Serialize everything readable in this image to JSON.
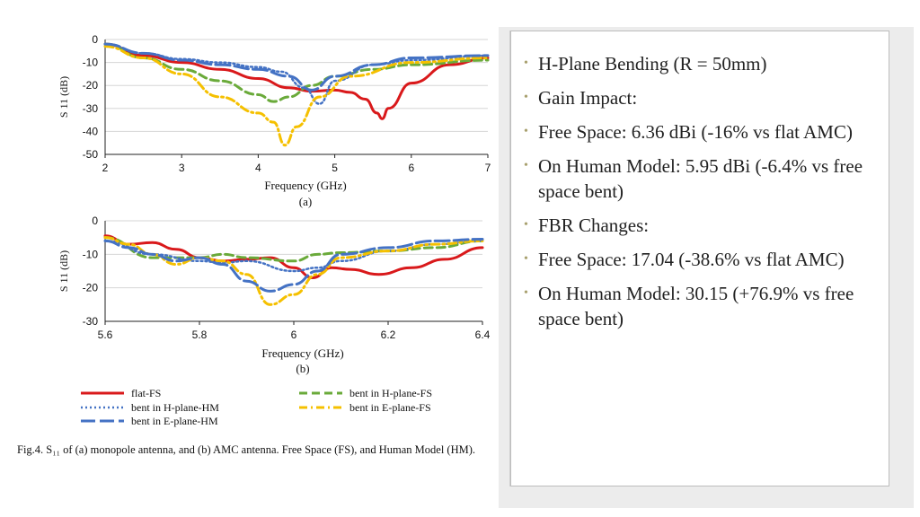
{
  "chart_data": [
    {
      "type": "line",
      "panel_label": "(a)",
      "xlabel": "Frequency (GHz)",
      "ylabel": "S 11 (dB)",
      "xlim": [
        2,
        7
      ],
      "ylim": [
        -50,
        0
      ],
      "xticks": [
        "2",
        "3",
        "4",
        "5",
        "6",
        "7"
      ],
      "yticks": [
        "0",
        "-10",
        "-20",
        "-30",
        "-40",
        "-50"
      ],
      "grid": "horizontal",
      "series": [
        {
          "name": "flat-FS",
          "color": "#d9191b",
          "dash": "solid",
          "x": [
            2,
            2.5,
            3,
            3.5,
            4,
            4.4,
            4.7,
            5,
            5.2,
            5.4,
            5.55,
            5.62,
            5.7,
            6,
            6.5,
            7
          ],
          "y": [
            -2,
            -7,
            -10,
            -13,
            -17,
            -21,
            -22.5,
            -22,
            -23,
            -26,
            -32,
            -34.5,
            -30,
            -19,
            -11,
            -8
          ]
        },
        {
          "name": "bent in H-plane-FS",
          "color": "#6aaa3a",
          "dash": "dash",
          "x": [
            2,
            2.5,
            3,
            3.5,
            4,
            4.2,
            4.4,
            4.7,
            5,
            5.5,
            6,
            7
          ],
          "y": [
            -2,
            -8,
            -13,
            -18,
            -24,
            -27,
            -25,
            -20,
            -16,
            -13,
            -11,
            -9
          ]
        },
        {
          "name": "bent in H-plane-HM",
          "color": "#4472c4",
          "dash": "dot",
          "x": [
            2,
            2.5,
            3,
            3.5,
            4,
            4.3,
            4.6,
            4.8,
            5,
            5.5,
            6,
            7
          ],
          "y": [
            -2,
            -6,
            -8.5,
            -10,
            -12,
            -14,
            -21,
            -28,
            -18,
            -11,
            -9,
            -7
          ]
        },
        {
          "name": "bent in E-plane-FS",
          "color": "#f5c000",
          "dash": "dashdot",
          "x": [
            2,
            2.5,
            3,
            3.5,
            4,
            4.2,
            4.35,
            4.5,
            4.8,
            5.2,
            6,
            7
          ],
          "y": [
            -3,
            -8,
            -15,
            -25,
            -32,
            -36,
            -46,
            -38,
            -25,
            -16,
            -10,
            -8
          ]
        },
        {
          "name": "bent in E-plane-HM",
          "color": "#4472c4",
          "dash": "longdash",
          "x": [
            2,
            2.5,
            3,
            3.5,
            4,
            4.4,
            4.7,
            5,
            5.5,
            6,
            7
          ],
          "y": [
            -2,
            -6,
            -9,
            -11,
            -13,
            -16,
            -22,
            -16,
            -11,
            -8,
            -7
          ]
        }
      ]
    },
    {
      "type": "line",
      "panel_label": "(b)",
      "xlabel": "Frequency (GHz)",
      "ylabel": "S 11 (dB)",
      "xlim": [
        5.6,
        6.4
      ],
      "ylim": [
        -30,
        0
      ],
      "xticks": [
        "5.6",
        "5.8",
        "6",
        "6.2",
        "6.4"
      ],
      "yticks": [
        "0",
        "-10",
        "-20",
        "-30"
      ],
      "grid": "horizontal",
      "series": [
        {
          "name": "flat-FS",
          "color": "#d9191b",
          "dash": "solid",
          "x": [
            5.6,
            5.65,
            5.7,
            5.75,
            5.8,
            5.85,
            5.9,
            5.95,
            6,
            6.04,
            6.08,
            6.12,
            6.18,
            6.25,
            6.32,
            6.4
          ],
          "y": [
            -4.5,
            -7,
            -6.5,
            -8.5,
            -11,
            -12,
            -11.5,
            -11,
            -14,
            -17,
            -14,
            -14.5,
            -16,
            -14,
            -11.5,
            -8
          ]
        },
        {
          "name": "bent in H-plane-FS",
          "color": "#6aaa3a",
          "dash": "dash",
          "x": [
            5.6,
            5.7,
            5.8,
            5.85,
            5.9,
            6.0,
            6.05,
            6.1,
            6.2,
            6.3,
            6.4
          ],
          "y": [
            -5,
            -11,
            -11,
            -10,
            -11,
            -12,
            -10,
            -9.5,
            -9,
            -8,
            -6
          ]
        },
        {
          "name": "bent in H-plane-HM",
          "color": "#4472c4",
          "dash": "dot",
          "x": [
            5.6,
            5.7,
            5.8,
            5.85,
            5.9,
            6.0,
            6.05,
            6.1,
            6.2,
            6.3,
            6.4
          ],
          "y": [
            -6,
            -10,
            -12,
            -12.5,
            -12,
            -15,
            -14,
            -12,
            -9,
            -7,
            -6
          ]
        },
        {
          "name": "bent in E-plane-FS",
          "color": "#f5c000",
          "dash": "dashdot",
          "x": [
            5.6,
            5.65,
            5.7,
            5.75,
            5.8,
            5.85,
            5.9,
            5.95,
            6.0,
            6.05,
            6.1,
            6.2,
            6.3,
            6.4
          ],
          "y": [
            -5,
            -7,
            -10,
            -13,
            -11,
            -12,
            -16,
            -25,
            -22,
            -16,
            -11,
            -9,
            -7,
            -6
          ]
        },
        {
          "name": "bent in E-plane-HM",
          "color": "#4472c4",
          "dash": "longdash",
          "x": [
            5.6,
            5.65,
            5.7,
            5.75,
            5.8,
            5.85,
            5.9,
            5.95,
            6.0,
            6.05,
            6.1,
            6.2,
            6.3,
            6.4
          ],
          "y": [
            -6,
            -8,
            -10,
            -12,
            -11,
            -13,
            -18,
            -21,
            -19,
            -15,
            -10,
            -8,
            -6,
            -5.5
          ]
        }
      ]
    }
  ],
  "legend": [
    {
      "label": "flat-FS",
      "color": "#d9191b",
      "dash": "solid"
    },
    {
      "label": "bent in H-plane-FS",
      "color": "#6aaa3a",
      "dash": "dash"
    },
    {
      "label": "bent in H-plane-HM",
      "color": "#4472c4",
      "dash": "dot"
    },
    {
      "label": "bent in E-plane-FS",
      "color": "#f5c000",
      "dash": "dashdot"
    },
    {
      "label": "bent in E-plane-HM",
      "color": "#4472c4",
      "dash": "longdash"
    }
  ],
  "caption": "Fig.4.   S₁₁ of (a) monopole antenna, and (b) AMC antenna. Free Space (FS), and Human Model (HM).",
  "bullets": [
    "H-Plane Bending (R = 50mm)",
    "Gain Impact:",
    "Free Space: 6.36 dBi (-16% vs flat AMC)",
    "On Human Model: 5.95 dBi (-6.4% vs free space bent)",
    "FBR Changes:",
    "Free Space: 17.04 (-38.6% vs flat AMC)",
    "On Human Model: 30.15 (+76.9% vs free space bent)"
  ],
  "colors": {
    "bullet": "#a8a06e",
    "panel_bg": "#ececec",
    "text": "#222222"
  }
}
